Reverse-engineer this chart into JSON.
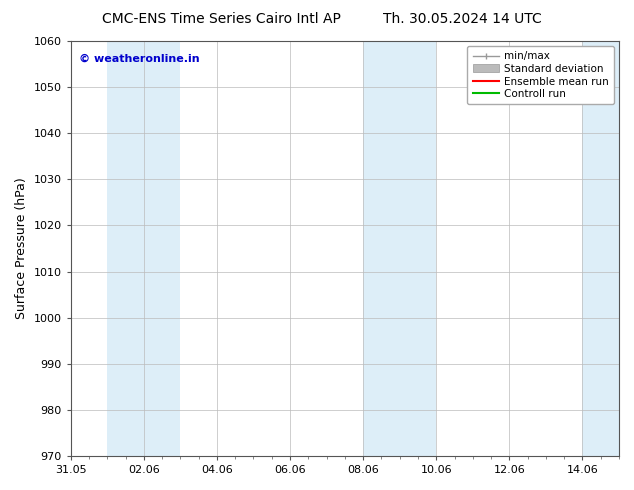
{
  "title_left": "CMC-ENS Time Series Cairo Intl AP",
  "title_right": "Th. 30.05.2024 14 UTC",
  "ylabel": "Surface Pressure (hPa)",
  "ylim": [
    970,
    1060
  ],
  "yticks": [
    970,
    980,
    990,
    1000,
    1010,
    1020,
    1030,
    1040,
    1050,
    1060
  ],
  "xtick_labels": [
    "31.05",
    "02.06",
    "04.06",
    "06.06",
    "08.06",
    "10.06",
    "12.06",
    "14.06"
  ],
  "xtick_positions": [
    0,
    2,
    4,
    6,
    8,
    10,
    12,
    14
  ],
  "xlim": [
    0,
    15
  ],
  "shaded_bands": [
    {
      "x_start": 1,
      "x_end": 3,
      "color": "#ddeef8"
    },
    {
      "x_start": 8,
      "x_end": 10,
      "color": "#ddeef8"
    },
    {
      "x_start": 14,
      "x_end": 15,
      "color": "#ddeef8"
    }
  ],
  "watermark_text": "© weatheronline.in",
  "watermark_color": "#0000cc",
  "legend_labels": [
    "min/max",
    "Standard deviation",
    "Ensemble mean run",
    "Controll run"
  ],
  "legend_colors_line": [
    "#999999",
    "#bbbbbb",
    "#ff0000",
    "#00bb00"
  ],
  "bg_color": "#ffffff",
  "plot_bg_color": "#ffffff",
  "title_fontsize": 10,
  "ylabel_fontsize": 9,
  "tick_fontsize": 8,
  "watermark_fontsize": 8,
  "legend_fontsize": 7.5
}
